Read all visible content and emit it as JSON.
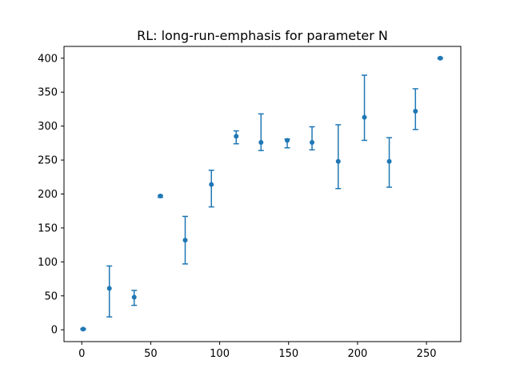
{
  "chart_data": {
    "type": "scatter",
    "title": "RL: long-run-emphasis for parameter N",
    "xlabel": "",
    "ylabel": "",
    "xlim": [
      -12.9,
      274.9
    ],
    "ylim": [
      -17.4,
      417.4
    ],
    "x_ticks": [
      0,
      50,
      100,
      150,
      200,
      250
    ],
    "x_tick_labels": [
      "0",
      "50",
      "100",
      "150",
      "200",
      "250"
    ],
    "y_ticks": [
      0,
      50,
      100,
      150,
      200,
      250,
      300,
      350,
      400
    ],
    "y_tick_labels": [
      "0",
      "50",
      "100",
      "150",
      "200",
      "250",
      "300",
      "350",
      "400"
    ],
    "grid": false,
    "legend": "none",
    "color": "#1f77b4",
    "series": [
      {
        "points": [
          {
            "x": 1,
            "y": 1,
            "err_low": 0,
            "err_high": 2
          },
          {
            "x": 20,
            "y": 61,
            "err_low": 19,
            "err_high": 94
          },
          {
            "x": 38,
            "y": 48,
            "err_low": 36,
            "err_high": 58
          },
          {
            "x": 57,
            "y": 197,
            "err_low": 195,
            "err_high": 198
          },
          {
            "x": 75,
            "y": 132,
            "err_low": 97,
            "err_high": 167
          },
          {
            "x": 94,
            "y": 214,
            "err_low": 181,
            "err_high": 235
          },
          {
            "x": 112,
            "y": 285,
            "err_low": 274,
            "err_high": 293
          },
          {
            "x": 130,
            "y": 276,
            "err_low": 264,
            "err_high": 318
          },
          {
            "x": 149,
            "y": 279,
            "err_low": 268,
            "err_high": 281
          },
          {
            "x": 167,
            "y": 276,
            "err_low": 265,
            "err_high": 299
          },
          {
            "x": 186,
            "y": 248,
            "err_low": 208,
            "err_high": 302
          },
          {
            "x": 205,
            "y": 313,
            "err_low": 279,
            "err_high": 375
          },
          {
            "x": 223,
            "y": 248,
            "err_low": 210,
            "err_high": 283
          },
          {
            "x": 242,
            "y": 322,
            "err_low": 295,
            "err_high": 355
          },
          {
            "x": 260,
            "y": 400,
            "err_low": 399,
            "err_high": 401
          }
        ]
      }
    ]
  }
}
